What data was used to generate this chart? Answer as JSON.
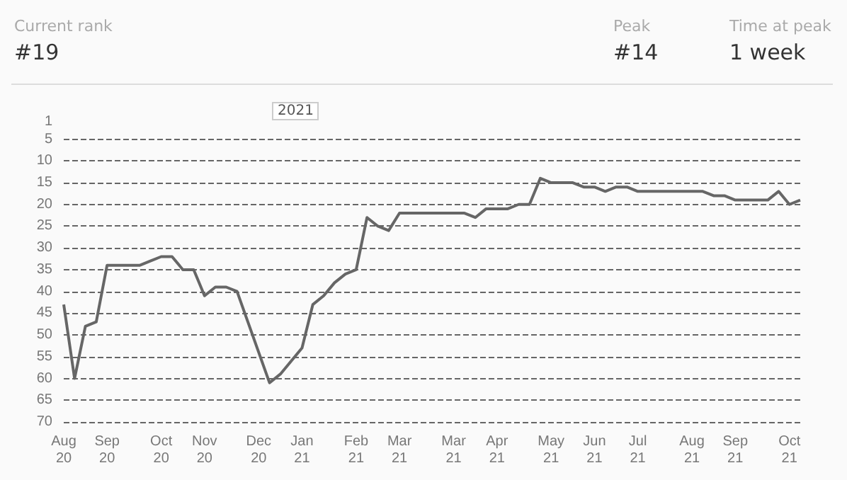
{
  "chart_data": {
    "type": "line",
    "annotations": [
      "Current rank",
      "#19",
      "Peak",
      "#14",
      "Time at peak",
      "1 week",
      "2021"
    ],
    "categories": [
      "Aug 20",
      null,
      null,
      null,
      "Sep 20",
      null,
      null,
      null,
      null,
      "Oct 20",
      null,
      null,
      null,
      "Nov 20",
      null,
      null,
      null,
      null,
      "Dec 20",
      null,
      null,
      null,
      "Jan 21",
      null,
      null,
      null,
      null,
      "Feb 21",
      null,
      null,
      null,
      "Mar 21",
      null,
      null,
      null,
      null,
      "Mar 21",
      null,
      null,
      null,
      "Apr 21",
      null,
      null,
      null,
      null,
      "May 21",
      null,
      null,
      null,
      "Jun 21",
      null,
      null,
      null,
      "Jul 21",
      null,
      null,
      null,
      null,
      "Aug 21",
      null,
      null,
      null,
      "Sep 21",
      null,
      null,
      null,
      null,
      "Oct 21",
      null
    ],
    "series": [
      {
        "color": "#666666",
        "values": [
          43,
          60,
          48,
          47,
          34,
          34,
          34,
          34,
          33,
          32,
          32,
          35,
          35,
          41,
          39,
          39,
          40,
          47,
          54,
          61,
          59,
          56,
          53,
          43,
          41,
          38,
          36,
          35,
          23,
          25,
          26,
          22,
          22,
          22,
          22,
          22,
          22,
          22,
          23,
          21,
          21,
          21,
          20,
          20,
          14,
          15,
          15,
          15,
          16,
          16,
          17,
          16,
          16,
          17,
          17,
          17,
          17,
          17,
          17,
          17,
          18,
          18,
          19,
          19,
          19,
          19,
          17,
          20,
          19
        ]
      }
    ],
    "ylim": [
      70,
      1
    ],
    "yticks": [
      1,
      5,
      10,
      15,
      20,
      25,
      30,
      35,
      40,
      45,
      50,
      55,
      60,
      65,
      70
    ],
    "grid": "y",
    "marker": "none",
    "line_style": "solid"
  }
}
